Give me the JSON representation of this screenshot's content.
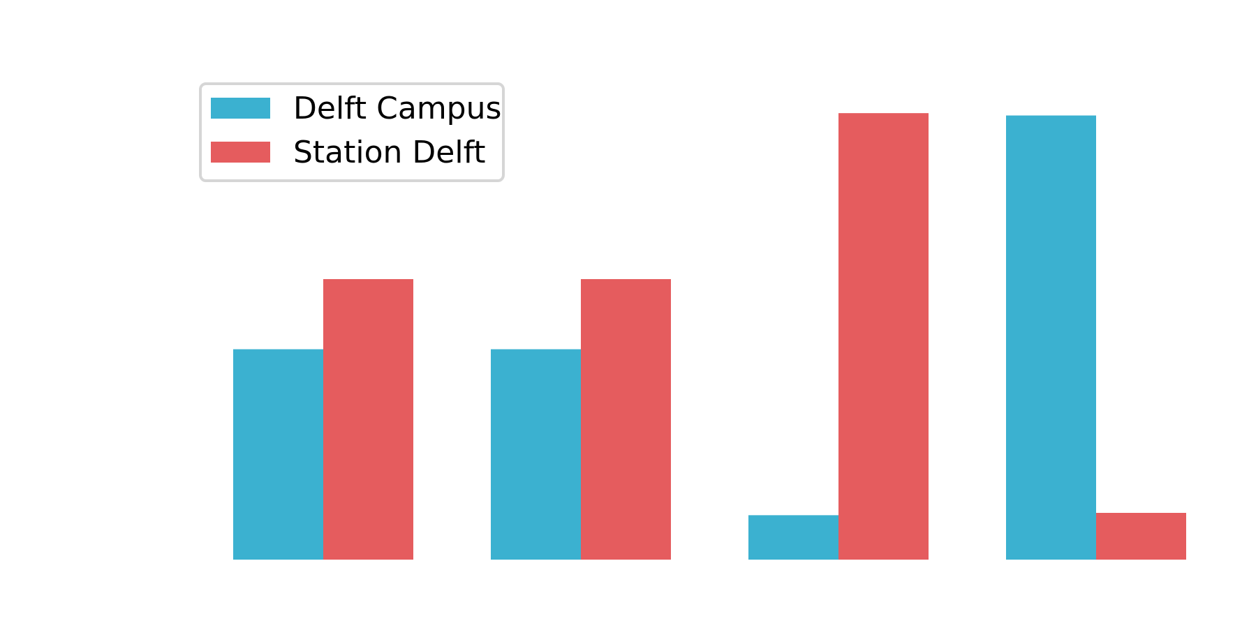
{
  "chart_data": {
    "type": "bar",
    "categories": [
      "",
      "",
      "",
      ""
    ],
    "series": [
      {
        "name": "Delft Campus",
        "color": "#3bb1d0",
        "values": [
          4.5,
          4.5,
          0.95,
          9.5
        ]
      },
      {
        "name": "Station Delft",
        "color": "#e55c5e",
        "values": [
          6.0,
          6.0,
          9.55,
          1.0
        ]
      }
    ],
    "title": "",
    "xlabel": "",
    "ylabel": "",
    "ylim": [
      0,
      10.0
    ],
    "grid": false,
    "legend": "upper-left"
  }
}
